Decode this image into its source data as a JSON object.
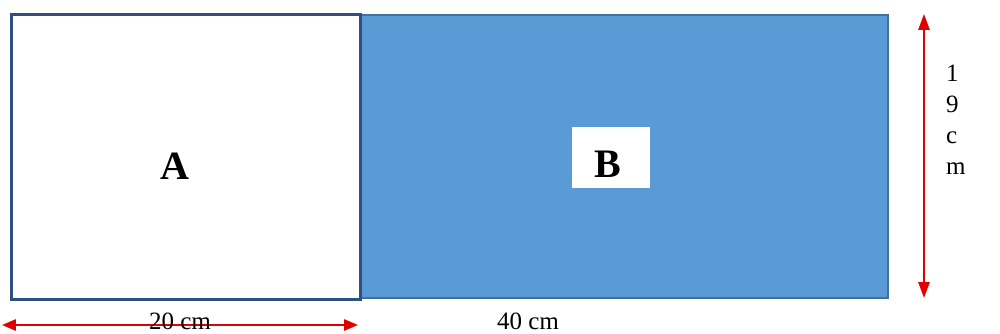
{
  "diagram": {
    "shape_a_label": "A",
    "shape_b_label": "B",
    "dimension_width_a": "20 cm",
    "dimension_width_b": "40 cm",
    "dimension_height_chars": [
      "1",
      "9",
      "c",
      "m"
    ],
    "colors": {
      "shape_b_fill": "#5b9bd5",
      "shape_a_border": "#2f4f80",
      "arrow": "#e00000"
    }
  }
}
